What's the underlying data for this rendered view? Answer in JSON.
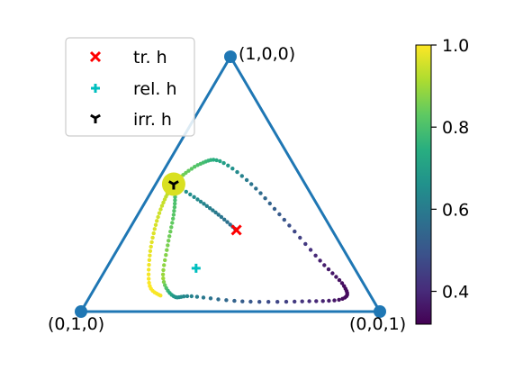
{
  "chart_data": {
    "type": "scatter",
    "plot": "ternary simplex with trajectory",
    "vertex_labels": [
      "(1,0,0)",
      "(0,1,0)",
      "(0,0,1)"
    ],
    "legend": {
      "placement": "top-left",
      "entries": [
        {
          "label": "tr. h",
          "marker": "x",
          "color": "#ff0000"
        },
        {
          "label": "rel. h",
          "marker": "+",
          "color": "#00bfbf"
        },
        {
          "label": "irr. h",
          "marker": "tri-down",
          "color": "#000000"
        }
      ]
    },
    "special_points": {
      "tr_h": {
        "coords": [
          0.32,
          0.32,
          0.36
        ]
      },
      "rel_h": {
        "coords": [
          0.17,
          0.53,
          0.3
        ]
      },
      "irr_h": {
        "coords": [
          0.5,
          0.44,
          0.06
        ]
      },
      "highlight": {
        "coords": [
          0.5,
          0.44,
          0.06
        ],
        "color": "#d9e021"
      }
    },
    "trajectory": {
      "colorscale": "viridis",
      "value_range": [
        0.32,
        1.0
      ],
      "points": [
        {
          "c": [
            0.32,
            0.32,
            0.36
          ],
          "v": 0.55
        },
        {
          "c": [
            0.38,
            0.35,
            0.27
          ],
          "v": 0.59
        },
        {
          "c": [
            0.44,
            0.39,
            0.17
          ],
          "v": 0.64
        },
        {
          "c": [
            0.5,
            0.44,
            0.06
          ],
          "v": 0.68
        },
        {
          "c": [
            0.47,
            0.45,
            0.08
          ],
          "v": 0.78
        },
        {
          "c": [
            0.38,
            0.5,
            0.12
          ],
          "v": 0.82
        },
        {
          "c": [
            0.26,
            0.58,
            0.16
          ],
          "v": 0.86
        },
        {
          "c": [
            0.13,
            0.66,
            0.21
          ],
          "v": 0.9
        },
        {
          "c": [
            0.06,
            0.66,
            0.28
          ],
          "v": 0.68
        },
        {
          "c": [
            0.06,
            0.6,
            0.34
          ],
          "v": 0.62
        },
        {
          "c": [
            0.04,
            0.44,
            0.52
          ],
          "v": 0.52
        },
        {
          "c": [
            0.04,
            0.24,
            0.72
          ],
          "v": 0.42
        },
        {
          "c": [
            0.05,
            0.1,
            0.85
          ],
          "v": 0.34
        },
        {
          "c": [
            0.1,
            0.07,
            0.83
          ],
          "v": 0.34
        },
        {
          "c": [
            0.2,
            0.1,
            0.7
          ],
          "v": 0.38
        },
        {
          "c": [
            0.36,
            0.14,
            0.5
          ],
          "v": 0.5
        },
        {
          "c": [
            0.5,
            0.18,
            0.32
          ],
          "v": 0.58
        },
        {
          "c": [
            0.59,
            0.24,
            0.17
          ],
          "v": 0.72
        },
        {
          "c": [
            0.58,
            0.31,
            0.11
          ],
          "v": 0.8
        },
        {
          "c": [
            0.53,
            0.4,
            0.07
          ],
          "v": 0.86
        },
        {
          "c": [
            0.5,
            0.44,
            0.06
          ],
          "v": 0.9
        },
        {
          "c": [
            0.44,
            0.5,
            0.06
          ],
          "v": 0.94
        },
        {
          "c": [
            0.34,
            0.58,
            0.08
          ],
          "v": 0.96
        },
        {
          "c": [
            0.22,
            0.66,
            0.12
          ],
          "v": 0.98
        },
        {
          "c": [
            0.1,
            0.72,
            0.18
          ],
          "v": 1.0
        },
        {
          "c": [
            0.06,
            0.7,
            0.24
          ],
          "v": 0.99
        }
      ]
    },
    "colorbar": {
      "range": [
        0.32,
        1.0
      ],
      "ticks": [
        0.4,
        0.6,
        0.8,
        1.0
      ],
      "tick_labels": [
        "0.4",
        "0.6",
        "0.8",
        "1.0"
      ]
    }
  }
}
